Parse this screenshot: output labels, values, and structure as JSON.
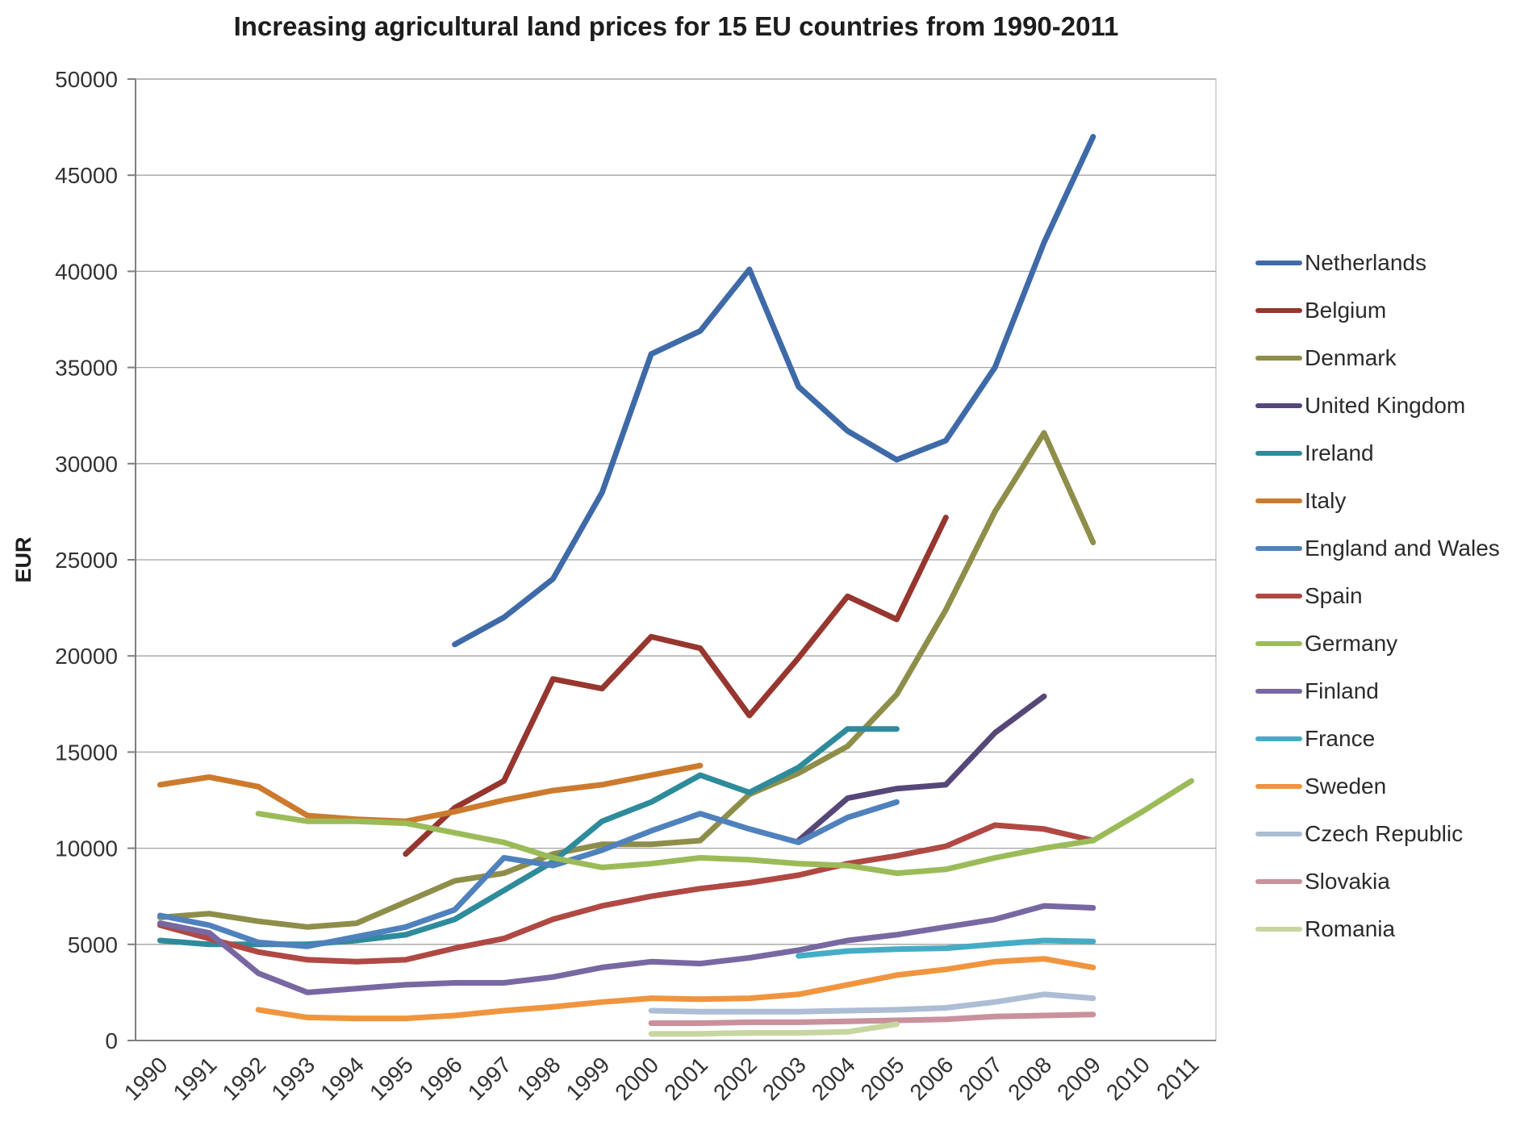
{
  "chart_data": {
    "type": "line",
    "title": "Increasing agricultural land prices for 15 EU countries from 1990-2011",
    "ylabel": "EUR",
    "xlabel": "",
    "ylim": [
      0,
      50000
    ],
    "yticks": [
      0,
      5000,
      10000,
      15000,
      20000,
      25000,
      30000,
      35000,
      40000,
      45000,
      50000
    ],
    "grid": "horizontal-gridlines",
    "legend_position": "right",
    "x": [
      1990,
      1991,
      1992,
      1993,
      1994,
      1995,
      1996,
      1997,
      1998,
      1999,
      2000,
      2001,
      2002,
      2003,
      2004,
      2005,
      2006,
      2007,
      2008,
      2009,
      2010,
      2011
    ],
    "series": [
      {
        "name": "Netherlands",
        "color": "#3E6AA8",
        "values": [
          null,
          null,
          null,
          null,
          null,
          null,
          20600,
          22000,
          24000,
          28500,
          35700,
          36900,
          40100,
          34000,
          31700,
          30200,
          31200,
          35000,
          41500,
          47000,
          null,
          null
        ]
      },
      {
        "name": "Belgium",
        "color": "#96362F",
        "values": [
          null,
          null,
          null,
          null,
          null,
          9700,
          12100,
          13500,
          18800,
          18300,
          21000,
          20400,
          16900,
          19900,
          23100,
          21900,
          27200,
          null,
          null,
          null,
          null,
          null
        ]
      },
      {
        "name": "Denmark",
        "color": "#8E8E4A",
        "values": [
          6400,
          6600,
          6200,
          5900,
          6100,
          7200,
          8300,
          8700,
          9700,
          10200,
          10200,
          10400,
          12800,
          13900,
          15300,
          18000,
          22400,
          27500,
          31600,
          25900,
          null,
          null
        ]
      },
      {
        "name": "United Kingdom",
        "color": "#564779",
        "values": [
          null,
          null,
          null,
          null,
          null,
          null,
          null,
          null,
          null,
          null,
          null,
          null,
          null,
          10400,
          12600,
          13100,
          13300,
          16000,
          17900,
          null,
          null,
          null
        ]
      },
      {
        "name": "Ireland",
        "color": "#2E8B9B",
        "values": [
          5200,
          5000,
          5000,
          5000,
          5200,
          5500,
          6300,
          7800,
          9300,
          11400,
          12400,
          13800,
          12900,
          14200,
          16200,
          16200,
          null,
          null,
          null,
          null,
          null,
          null
        ]
      },
      {
        "name": "Italy",
        "color": "#CC7A2E",
        "values": [
          13300,
          13700,
          13200,
          11700,
          11500,
          11400,
          11900,
          12500,
          13000,
          13300,
          13800,
          14300,
          null,
          null,
          null,
          null,
          null,
          null,
          null,
          null,
          null,
          null
        ]
      },
      {
        "name": "England and Wales",
        "color": "#4F81BD",
        "values": [
          6500,
          6000,
          5100,
          4900,
          5400,
          5900,
          6800,
          9500,
          9100,
          9900,
          10900,
          11800,
          11000,
          10300,
          11600,
          12400,
          null,
          null,
          null,
          null,
          null,
          null
        ]
      },
      {
        "name": "Spain",
        "color": "#B04843",
        "values": [
          6000,
          5300,
          4600,
          4200,
          4100,
          4200,
          4800,
          5300,
          6300,
          7000,
          7500,
          7900,
          8200,
          8600,
          9200,
          9600,
          10100,
          11200,
          11000,
          10400,
          null,
          null
        ]
      },
      {
        "name": "Germany",
        "color": "#9BBB59",
        "values": [
          null,
          null,
          11800,
          11400,
          11400,
          11300,
          10800,
          10300,
          9500,
          9000,
          9200,
          9500,
          9400,
          9200,
          9100,
          8700,
          8900,
          9500,
          10000,
          10400,
          11900,
          13500
        ]
      },
      {
        "name": "Finland",
        "color": "#7868A2",
        "values": [
          6100,
          5600,
          3500,
          2500,
          2700,
          2900,
          3000,
          3000,
          3300,
          3800,
          4100,
          4000,
          4300,
          4700,
          5200,
          5500,
          5900,
          6300,
          7000,
          6900,
          null,
          null
        ]
      },
      {
        "name": "France",
        "color": "#45ACC5",
        "values": [
          null,
          null,
          null,
          null,
          null,
          null,
          null,
          null,
          null,
          null,
          null,
          null,
          null,
          4400,
          4650,
          4750,
          4800,
          5000,
          5200,
          5150,
          null,
          null
        ]
      },
      {
        "name": "Sweden",
        "color": "#F0953F",
        "values": [
          null,
          null,
          1600,
          1200,
          1150,
          1150,
          1300,
          1550,
          1750,
          2000,
          2200,
          2150,
          2200,
          2400,
          2900,
          3400,
          3700,
          4100,
          4250,
          3800,
          null,
          null
        ]
      },
      {
        "name": "Czech Republic",
        "color": "#ACBDD4",
        "values": [
          null,
          null,
          null,
          null,
          null,
          null,
          null,
          null,
          null,
          null,
          1550,
          1500,
          1500,
          1500,
          1550,
          1600,
          1700,
          2000,
          2400,
          2200,
          null,
          null
        ]
      },
      {
        "name": "Slovakia",
        "color": "#C9919C",
        "values": [
          null,
          null,
          null,
          null,
          null,
          null,
          null,
          null,
          null,
          null,
          900,
          900,
          950,
          950,
          1000,
          1050,
          1100,
          1250,
          1300,
          1350,
          null,
          null
        ]
      },
      {
        "name": "Romania",
        "color": "#C6D6A0",
        "values": [
          null,
          null,
          null,
          null,
          null,
          null,
          null,
          null,
          null,
          null,
          350,
          350,
          400,
          400,
          450,
          850,
          null,
          null,
          null,
          null,
          null,
          null
        ]
      }
    ]
  }
}
